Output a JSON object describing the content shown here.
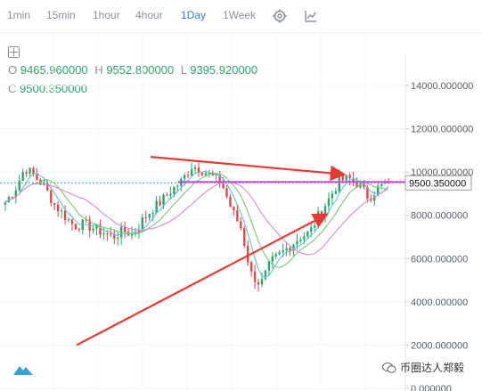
{
  "toolbar": {
    "timeframes": [
      {
        "label": "1min"
      },
      {
        "label": "15min"
      },
      {
        "label": "1hour"
      },
      {
        "label": "4hour"
      },
      {
        "label": "1Day"
      },
      {
        "label": "1Week"
      }
    ],
    "active_timeframe": "1Day",
    "settings_icon": "gear-icon",
    "chart_type_icon": "line-chart-icon"
  },
  "ohlc": {
    "o_label": "O",
    "o_value": "9465.960000",
    "h_label": "H",
    "h_value": "9552.800000",
    "l_label": "L",
    "l_value": "9395.920000",
    "c_label": "C",
    "c_value": "9500.350000"
  },
  "colors": {
    "up": "#2ea36a",
    "down": "#e0474c",
    "ma_teal": "#5fc3c7",
    "ma_green": "#7bc77b",
    "ma_pink": "#d98ad0",
    "resistance_line": "#e040e0",
    "trend_arrow": "#e53935",
    "active_tab": "#2f7bd6"
  },
  "price_axis": {
    "ticks": [
      "14000.000000",
      "12000.000000",
      "10000.000000",
      "8000.000000",
      "6000.000000",
      "4000.000000",
      "2000.000000",
      "0.000000"
    ],
    "current_price_tag": "9500.350000"
  },
  "watermark": {
    "text": "币圈达人郑毅",
    "icon": "wechat-icon"
  },
  "logo": "exchange-logo-icon",
  "chart_data": {
    "type": "candlestick",
    "ylim": [
      0,
      15000
    ],
    "y_ticks": [
      0,
      2000,
      4000,
      6000,
      8000,
      10000,
      12000,
      14000
    ],
    "price_series": [
      8600,
      9200,
      10200,
      9800,
      9300,
      8500,
      8000,
      7500,
      7600,
      7400,
      7200,
      7000,
      7300,
      7100,
      7800,
      8300,
      8700,
      9200,
      9600,
      10300,
      10100,
      9800,
      9500,
      8300,
      7400,
      5300,
      4800,
      5800,
      6200,
      6600,
      7000,
      7200,
      8100,
      8800,
      9600,
      9700,
      9400,
      8800,
      9300,
      9500
    ],
    "current_price": 9500.35,
    "resistance_level": 9500.35,
    "annotations": [
      {
        "type": "arrow",
        "from_price": 10700,
        "to_price": 9900,
        "meaning": "descending resistance"
      },
      {
        "type": "arrow",
        "from_price": 2000,
        "to_price": 8000,
        "meaning": "ascending support"
      }
    ]
  }
}
